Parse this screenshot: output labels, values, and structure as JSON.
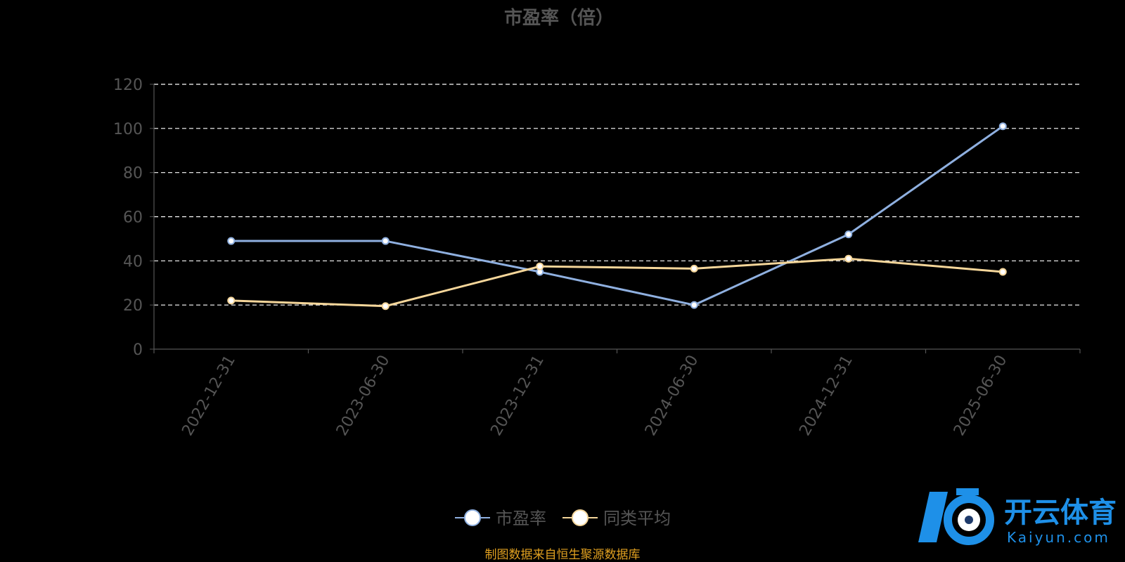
{
  "chart_data": {
    "type": "line",
    "title": "市盈率（倍）",
    "ylim": [
      0,
      120
    ],
    "yticks": [
      "0",
      "20",
      "40",
      "60",
      "80",
      "100",
      "120"
    ],
    "grid": true,
    "legend_position": "bottom-center",
    "categories": [
      "2022-12-31",
      "2023-06-30",
      "2023-12-31",
      "2024-06-30",
      "2024-12-31",
      "2025-06-30"
    ],
    "series": [
      {
        "name": "市盈率",
        "color": "#8fb0e0",
        "values": [
          49,
          49,
          35,
          20,
          52,
          101
        ]
      },
      {
        "name": "同类平均",
        "color": "#f5d69a",
        "values": [
          22,
          19.5,
          37.5,
          36.5,
          41,
          35
        ]
      }
    ]
  },
  "source_note": "制图数据来自恒生聚源数据库",
  "watermark": {
    "brand": "开云体育",
    "url": "Kaiyun.com"
  },
  "colors": {
    "background": "#000000",
    "grid": "#ffffff",
    "axis_text": "#555555",
    "title_text": "#555555",
    "source_text": "#e0a020",
    "watermark_blue": "#1e90e8"
  }
}
